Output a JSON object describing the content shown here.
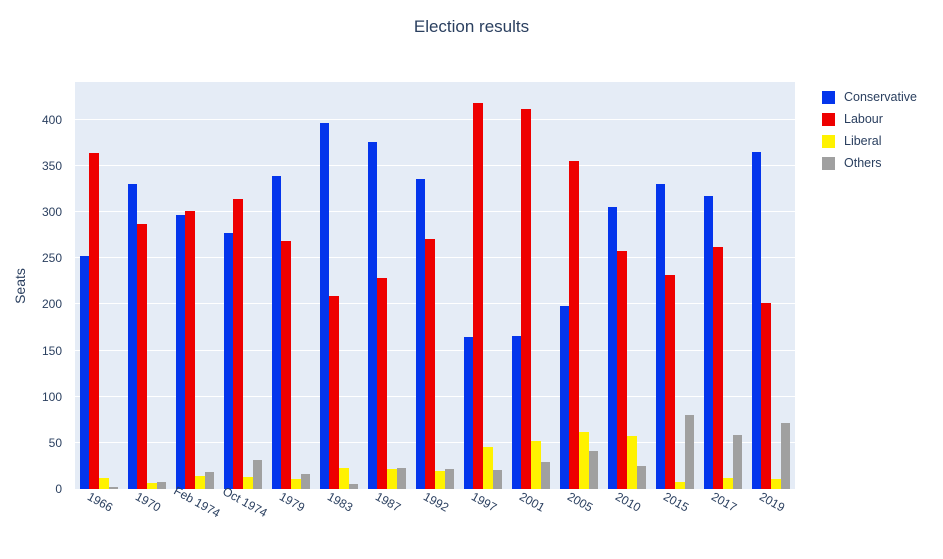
{
  "title": "Election results",
  "y_axis": {
    "label": "Seats",
    "ticks": [
      0,
      50,
      100,
      150,
      200,
      250,
      300,
      350,
      400
    ]
  },
  "legend": {
    "position": "top-right",
    "items": [
      "Conservative",
      "Labour",
      "Liberal",
      "Others"
    ]
  },
  "colors": {
    "plot_background": "#E5ECF6",
    "gridline": "#ffffff",
    "text": "#2a3f5f",
    "conservative": "#0435EC",
    "labour": "#EE0000",
    "liberal": "#FFF200",
    "others": "#A0A0A0"
  },
  "chart_data": {
    "type": "bar",
    "title": "Election results",
    "xlabel": "",
    "ylabel": "Seats",
    "ylim": [
      0,
      441
    ],
    "grid": true,
    "legend_position": "right-top",
    "categories": [
      "1966",
      "1970",
      "Feb 1974",
      "Oct 1974",
      "1979",
      "1983",
      "1987",
      "1992",
      "1997",
      "2001",
      "2005",
      "2010",
      "2015",
      "2017",
      "2019"
    ],
    "series": [
      {
        "name": "Conservative",
        "color": "#0435EC",
        "values": [
          253,
          330,
          297,
          277,
          339,
          397,
          376,
          336,
          165,
          166,
          198,
          306,
          330,
          317,
          365
        ]
      },
      {
        "name": "Labour",
        "color": "#EE0000",
        "values": [
          364,
          287,
          301,
          314,
          269,
          209,
          229,
          271,
          418,
          412,
          355,
          258,
          232,
          262,
          202
        ]
      },
      {
        "name": "Liberal",
        "color": "#FFF200",
        "values": [
          12,
          6,
          14,
          13,
          11,
          23,
          22,
          20,
          46,
          52,
          62,
          57,
          8,
          12,
          11
        ]
      },
      {
        "name": "Others",
        "color": "#A0A0A0",
        "values": [
          2,
          8,
          18,
          31,
          16,
          5,
          23,
          22,
          21,
          29,
          41,
          25,
          80,
          59,
          72
        ]
      }
    ]
  }
}
